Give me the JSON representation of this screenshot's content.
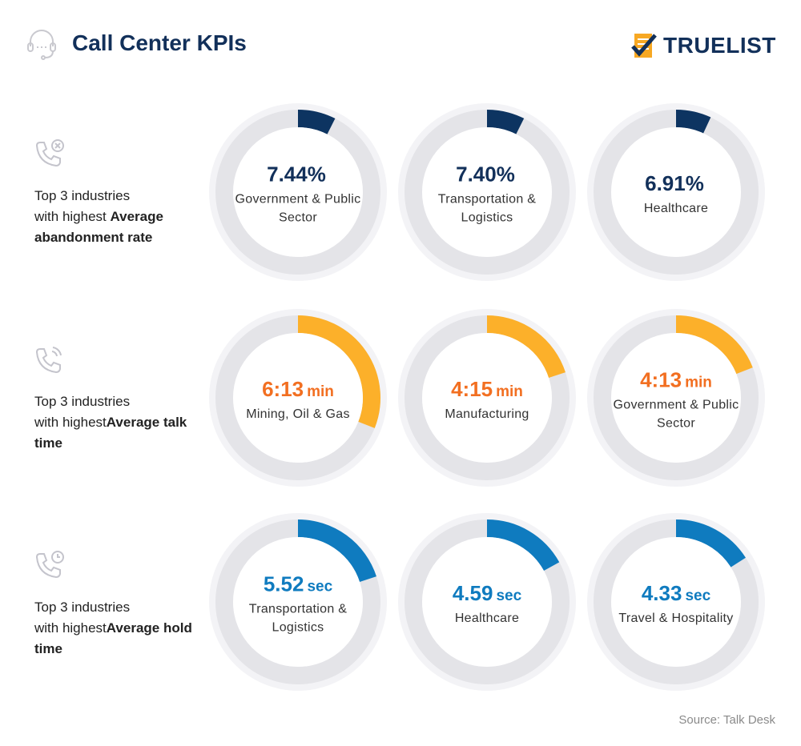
{
  "header": {
    "title": "Call Center KPIs",
    "logo": "TRUELIST"
  },
  "rows": [
    {
      "label_pre": "Top 3 industries",
      "label_mid": "with highest ",
      "label_bold": "Average abandonment rate",
      "icon": "phone-x-icon"
    },
    {
      "label_pre": "Top 3 industries",
      "label_mid": "with highest",
      "label_bold": "Average talk time",
      "icon": "phone-call-icon"
    },
    {
      "label_pre": "Top 3 industries",
      "label_mid": "with highest",
      "label_bold": "Average hold time",
      "icon": "phone-clock-icon"
    }
  ],
  "source": "Source: Talk Desk",
  "colors": {
    "navy": "#0d3461",
    "orange_arc": "#fcb02a",
    "orange_text": "#f26f21",
    "blue": "#0f7bbf",
    "track": "#e4e4e8",
    "halo": "#f3f3f6"
  },
  "chart_data": {
    "type": "donut",
    "series": [
      {
        "name": "Average abandonment rate",
        "color": "#0d3461",
        "text_color": "#12305a",
        "items": [
          {
            "value": "7.44%",
            "unit": "",
            "category": "Government & Public Sector",
            "fraction": 0.0744
          },
          {
            "value": "7.40%",
            "unit": "",
            "category": "Transportation & Logistics",
            "fraction": 0.074
          },
          {
            "value": "6.91%",
            "unit": "",
            "category": "Healthcare",
            "fraction": 0.0691
          }
        ]
      },
      {
        "name": "Average talk time",
        "color": "#fcb02a",
        "text_color": "#f26f21",
        "items": [
          {
            "value": "6:13",
            "unit": "min",
            "category": "Mining, Oil & Gas",
            "fraction": 0.31
          },
          {
            "value": "4:15",
            "unit": "min",
            "category": "Manufacturing",
            "fraction": 0.2
          },
          {
            "value": "4:13",
            "unit": "min",
            "category": "Government & Public Sector",
            "fraction": 0.19
          }
        ]
      },
      {
        "name": "Average hold time",
        "color": "#0f7bbf",
        "text_color": "#0f7bbf",
        "items": [
          {
            "value": "5.52",
            "unit": "sec",
            "category": "Transportation & Logistics",
            "fraction": 0.2
          },
          {
            "value": "4.59",
            "unit": "sec",
            "category": "Healthcare",
            "fraction": 0.17
          },
          {
            "value": "4.33",
            "unit": "sec",
            "category": "Travel & Hospitality",
            "fraction": 0.16
          }
        ]
      }
    ]
  }
}
